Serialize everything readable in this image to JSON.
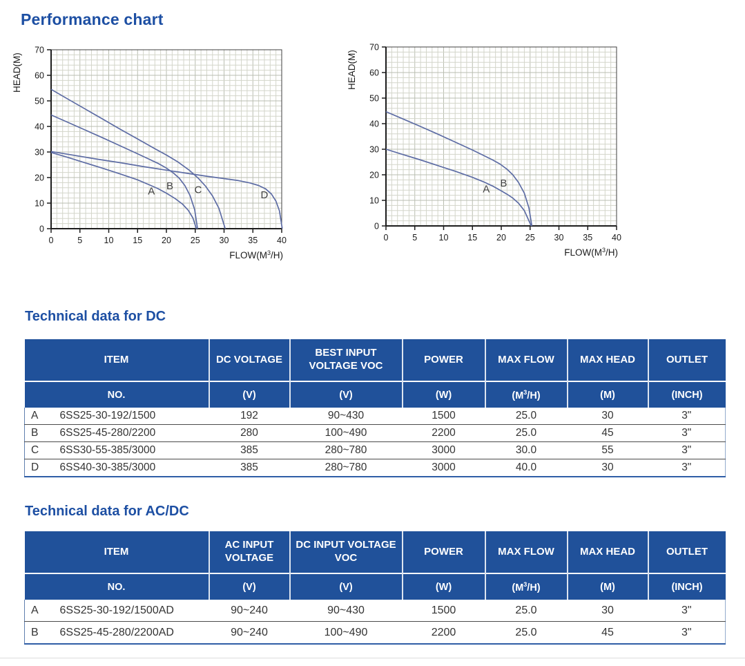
{
  "page": {
    "title": "Performance chart"
  },
  "colors": {
    "accent": "#1d4fa3",
    "table_header_bg": "#20519a",
    "curve": "#5d6ca4",
    "grid_minor": "#d3d5ca",
    "grid_major": "#b9bdb0",
    "axis": "#1c1c1c",
    "body_text": "#333333"
  },
  "chart_data": [
    {
      "type": "line",
      "ylabel": "HEAD(M)",
      "xlabel": {
        "pre": "FLOW(M",
        "sup": "3",
        "post": "/H)"
      },
      "xlim": [
        0,
        40
      ],
      "ylim": [
        0,
        70
      ],
      "xticks": [
        0,
        5,
        10,
        15,
        20,
        25,
        30,
        35,
        40
      ],
      "yticks": [
        0,
        10,
        20,
        30,
        40,
        50,
        60,
        70
      ],
      "minor_x": 1,
      "minor_y": 2,
      "grid": true,
      "series": [
        {
          "name": "A",
          "label_at": [
            17.4,
            13.4
          ],
          "points": [
            [
              0,
              29.8
            ],
            [
              3,
              27.8
            ],
            [
              6,
              25.7
            ],
            [
              9,
              23.6
            ],
            [
              12,
              21.4
            ],
            [
              15,
              19.1
            ],
            [
              17,
              17.2
            ],
            [
              18.5,
              15.7
            ],
            [
              20,
              13.9
            ],
            [
              21.5,
              11.8
            ],
            [
              22.8,
              9.6
            ],
            [
              23.8,
              7.2
            ],
            [
              24.6,
              4.2
            ],
            [
              25.2,
              0
            ]
          ]
        },
        {
          "name": "B",
          "label_at": [
            20.6,
            15.4
          ],
          "points": [
            [
              0,
              44.5
            ],
            [
              3,
              41.5
            ],
            [
              6,
              38.5
            ],
            [
              9,
              35.5
            ],
            [
              12,
              32.4
            ],
            [
              15,
              29.3
            ],
            [
              17,
              27.2
            ],
            [
              18.5,
              25.6
            ],
            [
              20,
              23.7
            ],
            [
              21.2,
              21.8
            ],
            [
              22.2,
              19.8
            ],
            [
              23.2,
              16.9
            ],
            [
              24.1,
              13
            ],
            [
              24.9,
              7.5
            ],
            [
              25.4,
              0
            ]
          ]
        },
        {
          "name": "C",
          "label_at": [
            25.5,
            13.9
          ],
          "points": [
            [
              0,
              54.5
            ],
            [
              3,
              50.6
            ],
            [
              6,
              46.7
            ],
            [
              9,
              42.8
            ],
            [
              12,
              38.9
            ],
            [
              15,
              35.1
            ],
            [
              18,
              31.3
            ],
            [
              20,
              28.8
            ],
            [
              22,
              26.1
            ],
            [
              24,
              22.8
            ],
            [
              25.5,
              19.8
            ],
            [
              26.8,
              16.6
            ],
            [
              28,
              12.8
            ],
            [
              29.1,
              8
            ],
            [
              30.2,
              0
            ]
          ]
        },
        {
          "name": "D",
          "label_at": [
            37.0,
            11.9
          ],
          "points": [
            [
              0,
              30.2
            ],
            [
              4,
              28.7
            ],
            [
              8,
              27.2
            ],
            [
              12,
              25.8
            ],
            [
              16,
              24.3
            ],
            [
              20,
              22.9
            ],
            [
              24,
              21.5
            ],
            [
              27,
              20.5
            ],
            [
              30,
              19.6
            ],
            [
              32.5,
              18.8
            ],
            [
              34.5,
              17.9
            ],
            [
              36,
              16.9
            ],
            [
              37.2,
              15.6
            ],
            [
              38.2,
              13.6
            ],
            [
              39,
              10.8
            ],
            [
              39.6,
              7
            ],
            [
              40.1,
              0
            ]
          ]
        }
      ]
    },
    {
      "type": "line",
      "ylabel": "HEAD(M)",
      "xlabel": {
        "pre": "FLOW(M",
        "sup": "3",
        "post": "/H)"
      },
      "xlim": [
        0,
        40
      ],
      "ylim": [
        0,
        70
      ],
      "xticks": [
        0,
        5,
        10,
        15,
        20,
        25,
        30,
        35,
        40
      ],
      "yticks": [
        0,
        10,
        20,
        30,
        40,
        50,
        60,
        70
      ],
      "minor_x": 1,
      "minor_y": 2,
      "grid": true,
      "series": [
        {
          "name": "A",
          "label_at": [
            17.4,
            13.1
          ],
          "points": [
            [
              0,
              30
            ],
            [
              3,
              27.9
            ],
            [
              6,
              25.8
            ],
            [
              9,
              23.6
            ],
            [
              12,
              21.4
            ],
            [
              15,
              19
            ],
            [
              17,
              17.2
            ],
            [
              18.5,
              15.6
            ],
            [
              20,
              13.7
            ],
            [
              21,
              12.4
            ],
            [
              22,
              10.9
            ],
            [
              23,
              8.9
            ],
            [
              24,
              6
            ],
            [
              25.2,
              0
            ]
          ]
        },
        {
          "name": "B",
          "label_at": [
            20.4,
            15.4
          ],
          "points": [
            [
              0,
              44.7
            ],
            [
              3,
              41.8
            ],
            [
              6,
              38.9
            ],
            [
              9,
              35.9
            ],
            [
              12,
              32.8
            ],
            [
              15,
              29.7
            ],
            [
              17,
              27.5
            ],
            [
              18.5,
              25.8
            ],
            [
              19.8,
              24.2
            ],
            [
              21,
              22.2
            ],
            [
              22,
              20
            ],
            [
              23,
              17
            ],
            [
              24,
              12.8
            ],
            [
              24.8,
              7
            ],
            [
              25.3,
              0
            ]
          ]
        }
      ]
    }
  ],
  "sections": [
    {
      "title": "Technical data for DC",
      "columns": [
        {
          "label": "ITEM",
          "unit": "NO."
        },
        {
          "label": "DC VOLTAGE",
          "unit": "(V)"
        },
        {
          "label": "BEST INPUT VOLTAGE VOC",
          "unit": "(V)"
        },
        {
          "label": "POWER",
          "unit": "(W)"
        },
        {
          "label": "MAX FLOW",
          "unit": {
            "pre": "(M",
            "sup": "3",
            "post": "/H)"
          }
        },
        {
          "label": "MAX HEAD",
          "unit": "(M)"
        },
        {
          "label": "OUTLET",
          "unit": "(INCH)"
        }
      ],
      "rows": [
        {
          "no": "A",
          "item": "6SS25-30-192/1500",
          "values": [
            "192",
            "90~430",
            "1500",
            "25.0",
            "30",
            "3\""
          ]
        },
        {
          "no": "B",
          "item": "6SS25-45-280/2200",
          "values": [
            "280",
            "100~490",
            "2200",
            "25.0",
            "45",
            "3\""
          ]
        },
        {
          "no": "C",
          "item": "6SS30-55-385/3000",
          "values": [
            "385",
            "280~780",
            "3000",
            "30.0",
            "55",
            "3\""
          ]
        },
        {
          "no": "D",
          "item": "6SS40-30-385/3000",
          "values": [
            "385",
            "280~780",
            "3000",
            "40.0",
            "30",
            "3\""
          ]
        }
      ]
    },
    {
      "title": "Technical data for AC/DC",
      "columns": [
        {
          "label": "ITEM",
          "unit": "NO."
        },
        {
          "label": "AC INPUT VOLTAGE",
          "unit": "(V)"
        },
        {
          "label": "DC INPUT VOLTAGE VOC",
          "unit": "(V)"
        },
        {
          "label": "POWER",
          "unit": "(W)"
        },
        {
          "label": "MAX FLOW",
          "unit": {
            "pre": "(M",
            "sup": "3",
            "post": "/H)"
          }
        },
        {
          "label": "MAX HEAD",
          "unit": "(M)"
        },
        {
          "label": "OUTLET",
          "unit": "(INCH)"
        }
      ],
      "rows": [
        {
          "no": "A",
          "item": "6SS25-30-192/1500AD",
          "values": [
            "90~240",
            "90~430",
            "1500",
            "25.0",
            "30",
            "3\""
          ]
        },
        {
          "no": "B",
          "item": "6SS25-45-280/2200AD",
          "values": [
            "90~240",
            "100~490",
            "2200",
            "25.0",
            "45",
            "3\""
          ]
        }
      ]
    }
  ]
}
